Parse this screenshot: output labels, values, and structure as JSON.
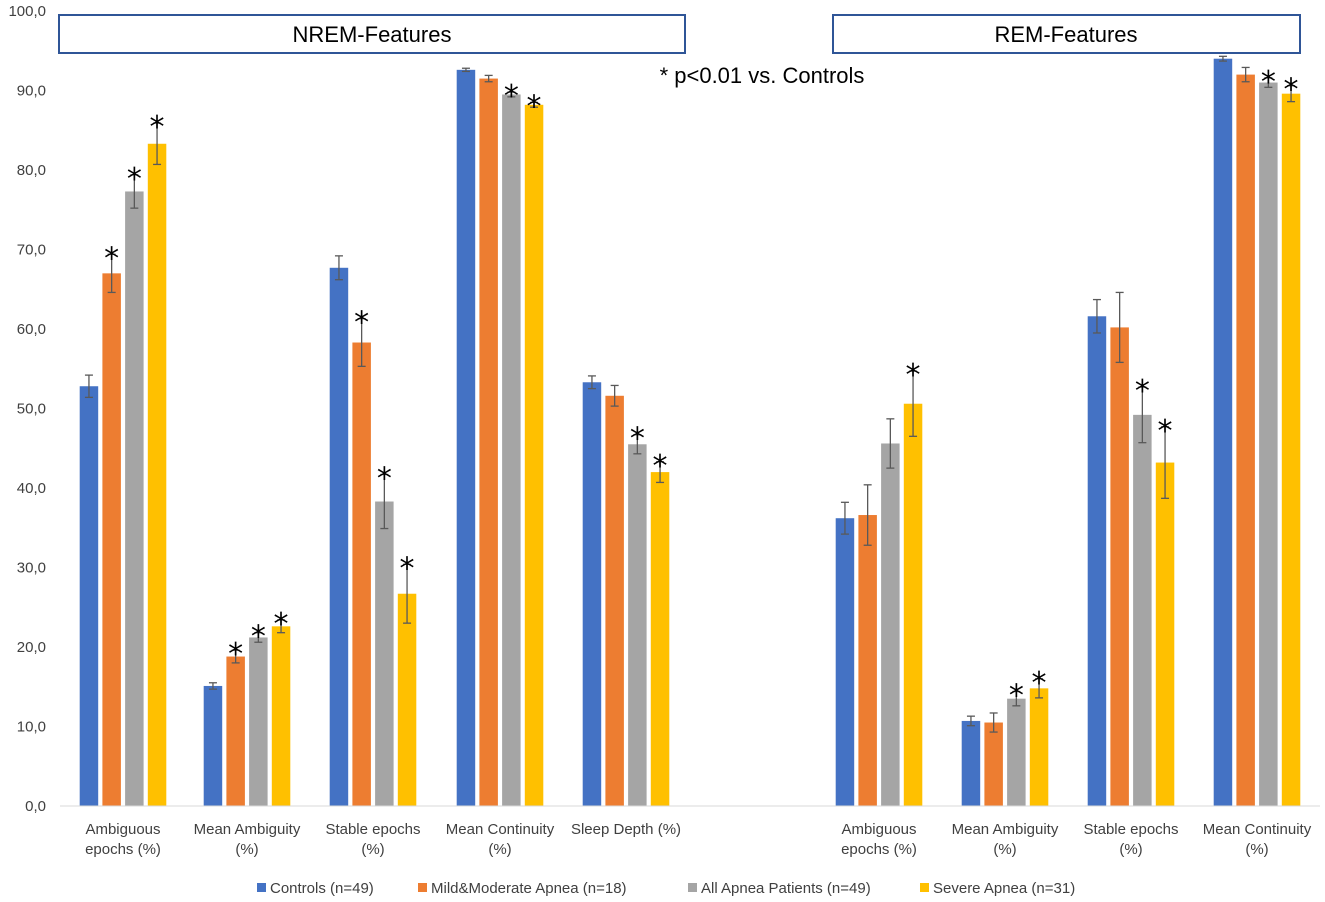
{
  "chart_data": {
    "type": "bar",
    "title": "",
    "xlabel": "",
    "ylabel": "",
    "ylim": [
      0,
      100
    ],
    "yticks": [
      "0,0",
      "10,0",
      "20,0",
      "30,0",
      "40,0",
      "50,0",
      "60,0",
      "70,0",
      "80,0",
      "90,0",
      "100,0"
    ],
    "grid": false,
    "legend_position": "bottom",
    "sections": [
      {
        "label": "NREM-Features",
        "first_category": 0,
        "last_category": 4
      },
      {
        "label": "REM-Features",
        "first_category": 5,
        "last_category": 8
      }
    ],
    "annotation": "* p<0.01 vs. Controls",
    "significance_marker": "*",
    "categories": [
      [
        "Ambiguous",
        "epochs (%)"
      ],
      [
        "Mean Ambiguity",
        "(%)"
      ],
      [
        "Stable epochs",
        "(%)"
      ],
      [
        "Mean Continuity",
        "(%)"
      ],
      [
        "Sleep Depth (%)"
      ],
      [
        "Ambiguous",
        "epochs (%)"
      ],
      [
        "Mean Ambiguity",
        "(%)"
      ],
      [
        "Stable epochs",
        "(%)"
      ],
      [
        "Mean Continuity",
        "(%)"
      ]
    ],
    "series": [
      {
        "name": "Controls (n=49)",
        "color": "#4472C4",
        "values": [
          52.8,
          15.1,
          67.7,
          92.6,
          53.3,
          36.2,
          10.7,
          61.6,
          94.0
        ],
        "errors": [
          1.4,
          0.4,
          1.5,
          0.2,
          0.8,
          2.0,
          0.6,
          2.1,
          0.3
        ],
        "significant": [
          false,
          false,
          false,
          false,
          false,
          false,
          false,
          false,
          false
        ]
      },
      {
        "name": "Mild&Moderate Apnea (n=18)",
        "color": "#ED7D31",
        "values": [
          67.0,
          18.8,
          58.3,
          91.5,
          51.6,
          36.6,
          10.5,
          60.2,
          92.0
        ],
        "errors": [
          2.4,
          0.8,
          3.0,
          0.4,
          1.3,
          3.8,
          1.2,
          4.4,
          0.9
        ],
        "significant": [
          true,
          true,
          true,
          false,
          false,
          false,
          false,
          false,
          false
        ]
      },
      {
        "name": "All Apnea Patients (n=49)",
        "color": "#A5A5A5",
        "values": [
          77.3,
          21.2,
          38.3,
          89.5,
          45.5,
          45.6,
          13.5,
          49.2,
          91.0
        ],
        "errors": [
          2.1,
          0.6,
          3.4,
          0.3,
          1.2,
          3.1,
          0.9,
          3.5,
          0.6
        ],
        "significant": [
          true,
          true,
          true,
          true,
          true,
          false,
          true,
          true,
          true
        ]
      },
      {
        "name": "Severe Apnea (n=31)",
        "color": "#FFC000",
        "values": [
          83.3,
          22.6,
          26.7,
          88.2,
          42.0,
          50.6,
          14.8,
          43.2,
          89.6
        ],
        "errors": [
          2.6,
          0.8,
          3.7,
          0.3,
          1.3,
          4.1,
          1.2,
          4.5,
          1.0
        ],
        "significant": [
          true,
          true,
          true,
          true,
          true,
          true,
          true,
          true,
          true
        ]
      }
    ]
  }
}
